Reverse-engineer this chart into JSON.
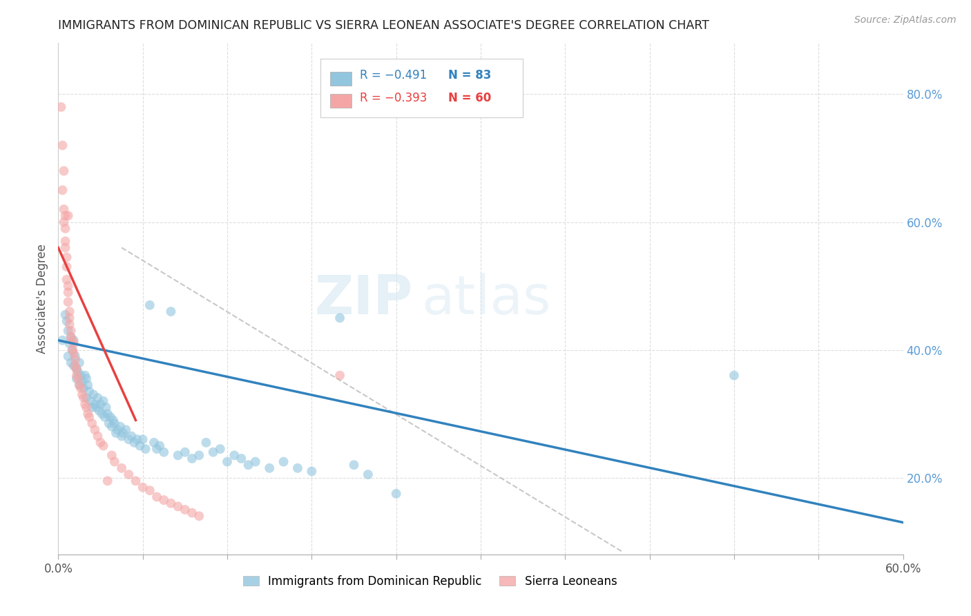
{
  "title": "IMMIGRANTS FROM DOMINICAN REPUBLIC VS SIERRA LEONEAN ASSOCIATE'S DEGREE CORRELATION CHART",
  "source_text": "Source: ZipAtlas.com",
  "ylabel": "Associate's Degree",
  "right_yticks": [
    "80.0%",
    "60.0%",
    "40.0%",
    "20.0%"
  ],
  "right_ytick_vals": [
    0.8,
    0.6,
    0.4,
    0.2
  ],
  "xlim": [
    0.0,
    0.6
  ],
  "ylim": [
    0.08,
    0.88
  ],
  "watermark_zip": "ZIP",
  "watermark_atlas": "atlas",
  "legend_blue_label": "Immigrants from Dominican Republic",
  "legend_pink_label": "Sierra Leoneans",
  "legend_R_blue": "-0.491",
  "legend_N_blue": "83",
  "legend_R_pink": "-0.393",
  "legend_N_pink": "60",
  "blue_color": "#92c5de",
  "pink_color": "#f4a6a6",
  "trendline_blue_color": "#3182bd",
  "trendline_pink_color": "#e84040",
  "trendline_gray_color": "#c8c8c8",
  "background_color": "#ffffff",
  "grid_color": "#dddddd",
  "right_axis_color": "#5b9bd5",
  "blue_scatter": [
    [
      0.003,
      0.415
    ],
    [
      0.005,
      0.455
    ],
    [
      0.006,
      0.445
    ],
    [
      0.007,
      0.43
    ],
    [
      0.007,
      0.39
    ],
    [
      0.008,
      0.41
    ],
    [
      0.009,
      0.42
    ],
    [
      0.009,
      0.38
    ],
    [
      0.01,
      0.4
    ],
    [
      0.011,
      0.415
    ],
    [
      0.011,
      0.375
    ],
    [
      0.012,
      0.39
    ],
    [
      0.013,
      0.37
    ],
    [
      0.013,
      0.355
    ],
    [
      0.014,
      0.365
    ],
    [
      0.015,
      0.38
    ],
    [
      0.015,
      0.345
    ],
    [
      0.016,
      0.36
    ],
    [
      0.017,
      0.35
    ],
    [
      0.018,
      0.34
    ],
    [
      0.019,
      0.36
    ],
    [
      0.02,
      0.355
    ],
    [
      0.02,
      0.325
    ],
    [
      0.021,
      0.345
    ],
    [
      0.022,
      0.335
    ],
    [
      0.023,
      0.32
    ],
    [
      0.024,
      0.31
    ],
    [
      0.025,
      0.33
    ],
    [
      0.026,
      0.315
    ],
    [
      0.027,
      0.31
    ],
    [
      0.028,
      0.325
    ],
    [
      0.029,
      0.305
    ],
    [
      0.03,
      0.315
    ],
    [
      0.031,
      0.3
    ],
    [
      0.032,
      0.32
    ],
    [
      0.033,
      0.295
    ],
    [
      0.034,
      0.31
    ],
    [
      0.035,
      0.3
    ],
    [
      0.036,
      0.285
    ],
    [
      0.037,
      0.295
    ],
    [
      0.038,
      0.28
    ],
    [
      0.039,
      0.29
    ],
    [
      0.04,
      0.285
    ],
    [
      0.041,
      0.27
    ],
    [
      0.042,
      0.275
    ],
    [
      0.044,
      0.28
    ],
    [
      0.045,
      0.265
    ],
    [
      0.046,
      0.27
    ],
    [
      0.048,
      0.275
    ],
    [
      0.05,
      0.26
    ],
    [
      0.052,
      0.265
    ],
    [
      0.054,
      0.255
    ],
    [
      0.056,
      0.26
    ],
    [
      0.058,
      0.25
    ],
    [
      0.06,
      0.26
    ],
    [
      0.062,
      0.245
    ],
    [
      0.065,
      0.47
    ],
    [
      0.068,
      0.255
    ],
    [
      0.07,
      0.245
    ],
    [
      0.072,
      0.25
    ],
    [
      0.075,
      0.24
    ],
    [
      0.08,
      0.46
    ],
    [
      0.085,
      0.235
    ],
    [
      0.09,
      0.24
    ],
    [
      0.095,
      0.23
    ],
    [
      0.1,
      0.235
    ],
    [
      0.105,
      0.255
    ],
    [
      0.11,
      0.24
    ],
    [
      0.115,
      0.245
    ],
    [
      0.12,
      0.225
    ],
    [
      0.125,
      0.235
    ],
    [
      0.13,
      0.23
    ],
    [
      0.135,
      0.22
    ],
    [
      0.14,
      0.225
    ],
    [
      0.15,
      0.215
    ],
    [
      0.16,
      0.225
    ],
    [
      0.17,
      0.215
    ],
    [
      0.18,
      0.21
    ],
    [
      0.2,
      0.45
    ],
    [
      0.21,
      0.22
    ],
    [
      0.22,
      0.205
    ],
    [
      0.24,
      0.175
    ],
    [
      0.48,
      0.36
    ]
  ],
  "pink_scatter": [
    [
      0.002,
      0.78
    ],
    [
      0.003,
      0.72
    ],
    [
      0.003,
      0.65
    ],
    [
      0.004,
      0.68
    ],
    [
      0.004,
      0.62
    ],
    [
      0.004,
      0.6
    ],
    [
      0.005,
      0.61
    ],
    [
      0.005,
      0.59
    ],
    [
      0.005,
      0.57
    ],
    [
      0.005,
      0.56
    ],
    [
      0.006,
      0.545
    ],
    [
      0.006,
      0.53
    ],
    [
      0.006,
      0.51
    ],
    [
      0.007,
      0.5
    ],
    [
      0.007,
      0.49
    ],
    [
      0.007,
      0.61
    ],
    [
      0.007,
      0.475
    ],
    [
      0.008,
      0.46
    ],
    [
      0.008,
      0.45
    ],
    [
      0.008,
      0.44
    ],
    [
      0.009,
      0.43
    ],
    [
      0.009,
      0.42
    ],
    [
      0.01,
      0.415
    ],
    [
      0.01,
      0.4
    ],
    [
      0.011,
      0.41
    ],
    [
      0.011,
      0.395
    ],
    [
      0.012,
      0.385
    ],
    [
      0.012,
      0.375
    ],
    [
      0.013,
      0.37
    ],
    [
      0.013,
      0.36
    ],
    [
      0.014,
      0.355
    ],
    [
      0.015,
      0.345
    ],
    [
      0.016,
      0.34
    ],
    [
      0.017,
      0.33
    ],
    [
      0.018,
      0.325
    ],
    [
      0.019,
      0.315
    ],
    [
      0.02,
      0.31
    ],
    [
      0.021,
      0.3
    ],
    [
      0.022,
      0.295
    ],
    [
      0.024,
      0.285
    ],
    [
      0.026,
      0.275
    ],
    [
      0.028,
      0.265
    ],
    [
      0.03,
      0.255
    ],
    [
      0.032,
      0.25
    ],
    [
      0.035,
      0.195
    ],
    [
      0.038,
      0.235
    ],
    [
      0.04,
      0.225
    ],
    [
      0.045,
      0.215
    ],
    [
      0.05,
      0.205
    ],
    [
      0.055,
      0.195
    ],
    [
      0.06,
      0.185
    ],
    [
      0.065,
      0.18
    ],
    [
      0.07,
      0.17
    ],
    [
      0.075,
      0.165
    ],
    [
      0.08,
      0.16
    ],
    [
      0.085,
      0.155
    ],
    [
      0.09,
      0.15
    ],
    [
      0.095,
      0.145
    ],
    [
      0.1,
      0.14
    ],
    [
      0.2,
      0.36
    ]
  ],
  "blue_trend_x": [
    0.0,
    0.6
  ],
  "blue_trend_y": [
    0.415,
    0.13
  ],
  "pink_trend_x": [
    0.0,
    0.055
  ],
  "pink_trend_y": [
    0.56,
    0.29
  ],
  "gray_trend_x": [
    0.045,
    0.4
  ],
  "gray_trend_y": [
    0.56,
    0.085
  ]
}
